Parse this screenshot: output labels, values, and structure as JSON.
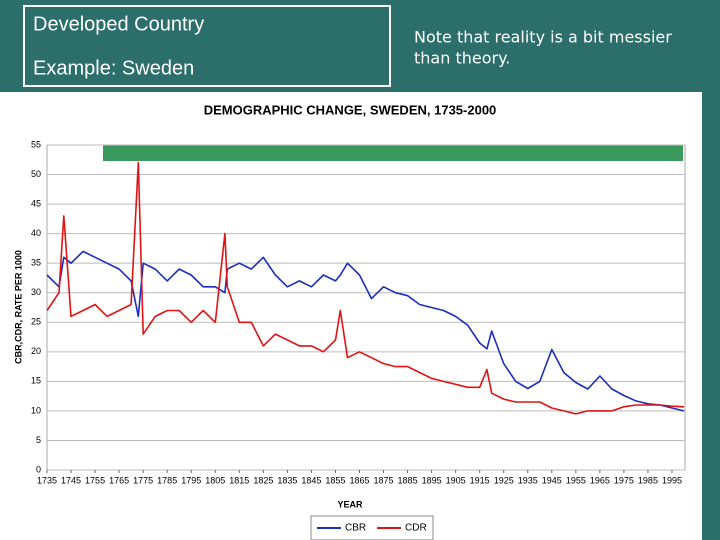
{
  "header": {
    "box_line1": "Developed Country",
    "box_line2": "Example: Sweden",
    "note": [
      "Note that reality is a bit messier",
      "than theory."
    ]
  },
  "chart_data": {
    "type": "line",
    "title": "DEMOGRAPHIC CHANGE, SWEDEN, 1735-2000",
    "x_label": "YEAR",
    "y_label": "CBR,CDR, RATE PER 1000",
    "x": [
      1735,
      1740,
      1742,
      1745,
      1750,
      1755,
      1760,
      1765,
      1770,
      1773,
      1775,
      1780,
      1785,
      1790,
      1795,
      1800,
      1805,
      1809,
      1810,
      1815,
      1820,
      1825,
      1830,
      1835,
      1840,
      1845,
      1850,
      1855,
      1857,
      1860,
      1865,
      1870,
      1875,
      1880,
      1885,
      1890,
      1895,
      1900,
      1905,
      1910,
      1915,
      1918,
      1920,
      1925,
      1930,
      1935,
      1940,
      1945,
      1950,
      1955,
      1960,
      1965,
      1970,
      1975,
      1980,
      1985,
      1990,
      1995,
      2000
    ],
    "series": [
      {
        "name": "CBR",
        "color": "#1a2ec0",
        "values": [
          33,
          31,
          36,
          35,
          37,
          36,
          35,
          34,
          32,
          26,
          35,
          34,
          32,
          34,
          33,
          31,
          31,
          30,
          34,
          35,
          34,
          36,
          33,
          31,
          32,
          31,
          33,
          32,
          33,
          35,
          33,
          29,
          31,
          30,
          29.5,
          28,
          27.5,
          27,
          26,
          24.5,
          21.5,
          20.5,
          23.5,
          18,
          15,
          13.8,
          15,
          20.4,
          16.5,
          14.8,
          13.7,
          15.9,
          13.7,
          12.6,
          11.7,
          11.2,
          11,
          10.5,
          10
        ]
      },
      {
        "name": "CDR",
        "color": "#e01414",
        "values": [
          27,
          30,
          43,
          26,
          27,
          28,
          26,
          27,
          28,
          52,
          23,
          26,
          27,
          27,
          25,
          27,
          25,
          40,
          31,
          25,
          25,
          21,
          23,
          22,
          21,
          21,
          20,
          22,
          27,
          19,
          20,
          19,
          18,
          17.5,
          17.5,
          16.5,
          15.5,
          15,
          14.5,
          14,
          14,
          17,
          13,
          12,
          11.5,
          11.5,
          11.5,
          10.5,
          10,
          9.5,
          10,
          10,
          10,
          10.7,
          11,
          11,
          11,
          10.8,
          10.7
        ]
      }
    ],
    "xlim": [
      1735,
      2000
    ],
    "ylim": [
      0,
      55
    ],
    "xticks": [
      1735,
      1745,
      1755,
      1765,
      1775,
      1785,
      1795,
      1805,
      1815,
      1825,
      1835,
      1845,
      1855,
      1865,
      1875,
      1885,
      1895,
      1905,
      1915,
      1925,
      1935,
      1945,
      1955,
      1965,
      1975,
      1985,
      1995
    ],
    "yticks": [
      0,
      5,
      10,
      15,
      20,
      25,
      30,
      35,
      40,
      45,
      50,
      55
    ],
    "grid": true,
    "legend": "bottom"
  }
}
